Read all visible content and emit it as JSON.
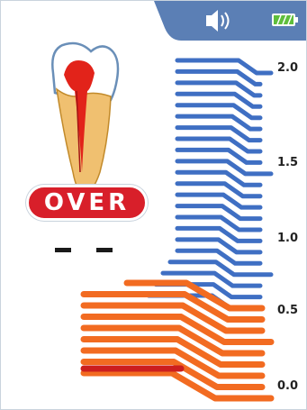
{
  "status_bar": {
    "speaker_icon": "speaker-icon",
    "battery_icon": "battery-icon",
    "colors": {
      "tab": "#5b7fb5",
      "battery": "#5fbe3c"
    }
  },
  "status_message": "OVER",
  "length_readout": "- -",
  "scale": {
    "labels": [
      "2.0",
      "1.5",
      "1.0",
      "0.5",
      "0.0"
    ],
    "colors": {
      "blue": "#3f6fc3",
      "orange": "#f26b21",
      "red": "#cc1e1e"
    }
  }
}
